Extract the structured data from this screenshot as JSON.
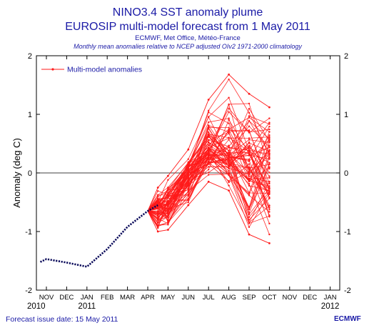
{
  "header": {
    "title": "NINO3.4 SST anomaly plume",
    "subtitle": "EUROSIP multi-model forecast from 1 May 2011",
    "centres": "ECMWF, Met Office, Météo-France",
    "note": "Monthly mean anomalies relative to NCEP adjusted OIv2 1971-2000 climatology"
  },
  "footer": {
    "issue_date": "Forecast issue date: 15 May 2011",
    "logo": "ECMWF"
  },
  "colors": {
    "plume": "#ff1a1a",
    "observed": "#0a0a5a",
    "text_blue": "#1a1aa6"
  },
  "chart_data": {
    "type": "line",
    "ylabel": "Anomaly (deg C)",
    "ylim": [
      -2,
      2
    ],
    "yticks": [
      -2,
      -1,
      0,
      1,
      2
    ],
    "month_labels": [
      "NOV",
      "DEC",
      "JAN",
      "FEB",
      "MAR",
      "APR",
      "MAY",
      "JUN",
      "JUL",
      "AUG",
      "SEP",
      "OCT",
      "NOV",
      "DEC",
      "JAN"
    ],
    "year_labels": [
      {
        "month_index": -0.5,
        "label": "2010"
      },
      {
        "month_index": 2,
        "label": "2011"
      },
      {
        "month_index": 14,
        "label": "2012"
      }
    ],
    "legend": {
      "label": "Multi-model anomalies",
      "position": "top-left"
    },
    "observed": {
      "month_index": [
        -0.3,
        0,
        1,
        2,
        3,
        4,
        5,
        5.5
      ],
      "values": [
        -1.52,
        -1.47,
        -1.53,
        -1.6,
        -1.3,
        -0.92,
        -0.65,
        -0.55
      ]
    },
    "plume_summary": {
      "start_month_index": 5.0,
      "start_value": -0.65,
      "month_index": [
        5.5,
        6,
        7,
        8,
        9,
        10,
        11
      ],
      "min": [
        -1.0,
        -0.97,
        -0.55,
        -0.15,
        -0.3,
        -1.05,
        -1.2
      ],
      "max": [
        -0.25,
        -0.05,
        0.4,
        1.25,
        1.68,
        1.35,
        1.12
      ],
      "median": [
        -0.55,
        -0.45,
        0.0,
        0.45,
        0.35,
        0.3,
        0.25
      ]
    }
  }
}
